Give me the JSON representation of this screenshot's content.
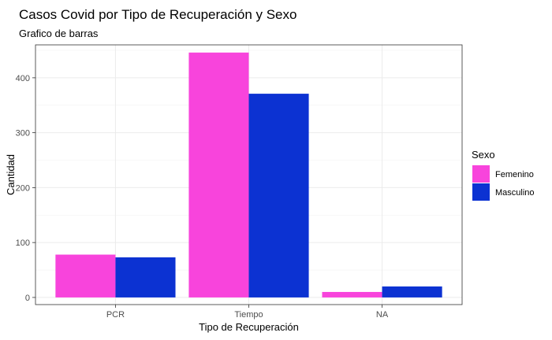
{
  "chart_data": {
    "type": "bar",
    "title": "Casos Covid por Tipo de Recuperación y Sexo",
    "subtitle": "Grafico de barras",
    "xlabel": "Tipo de Recuperación",
    "ylabel": "Cantidad",
    "categories": [
      "PCR",
      "Tiempo",
      "NA"
    ],
    "series": [
      {
        "name": "Femenino",
        "color": "#f844dc",
        "values": [
          78,
          446,
          10
        ]
      },
      {
        "name": "Masculino",
        "color": "#0c32d2",
        "values": [
          73,
          371,
          20
        ]
      }
    ],
    "ylim": [
      -13,
      460
    ],
    "yticks": [
      0,
      100,
      200,
      300,
      400
    ],
    "legend": {
      "title": "Sexo",
      "position": "right"
    },
    "grid": true
  }
}
